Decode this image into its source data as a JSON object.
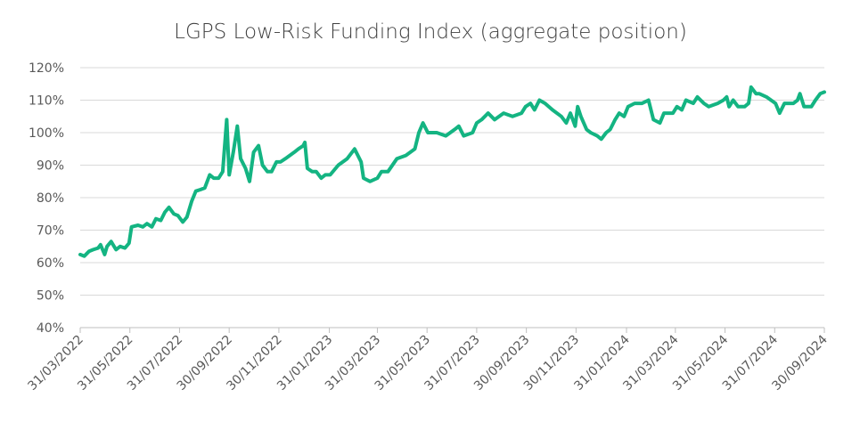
{
  "chart_data": {
    "type": "line",
    "title": "LGPS Low-Risk Funding Index (aggregate position)",
    "color": "#14b482",
    "grid": true,
    "x": [
      "2022-03-31",
      "2022-04-05",
      "2022-04-11",
      "2022-04-16",
      "2022-04-22",
      "2022-04-25",
      "2022-04-30",
      "2022-05-03",
      "2022-05-08",
      "2022-05-14",
      "2022-05-19",
      "2022-05-25",
      "2022-05-30",
      "2022-06-02",
      "2022-06-10",
      "2022-06-16",
      "2022-06-21",
      "2022-06-27",
      "2022-07-02",
      "2022-07-08",
      "2022-07-13",
      "2022-07-18",
      "2022-07-24",
      "2022-07-29",
      "2022-08-04",
      "2022-08-09",
      "2022-08-15",
      "2022-08-20",
      "2022-08-26",
      "2022-08-31",
      "2022-09-06",
      "2022-09-11",
      "2022-09-17",
      "2022-09-22",
      "2022-09-27",
      "2022-09-30",
      "2022-10-05",
      "2022-10-10",
      "2022-10-14",
      "2022-10-20",
      "2022-10-25",
      "2022-10-30",
      "2022-11-05",
      "2022-11-10",
      "2022-11-16",
      "2022-11-21",
      "2022-11-27",
      "2022-12-02",
      "2022-12-08",
      "2022-12-19",
      "2022-12-24",
      "2022-12-30",
      "2023-01-01",
      "2023-01-04",
      "2023-01-10",
      "2023-01-15",
      "2023-01-21",
      "2023-01-26",
      "2023-02-01",
      "2023-02-11",
      "2023-02-22",
      "2023-03-03",
      "2023-03-11",
      "2023-03-14",
      "2023-03-22",
      "2023-03-31",
      "2023-04-05",
      "2023-04-13",
      "2023-04-24",
      "2023-05-05",
      "2023-05-16",
      "2023-05-21",
      "2023-05-26",
      "2023-06-01",
      "2023-06-12",
      "2023-06-23",
      "2023-07-04",
      "2023-07-09",
      "2023-07-15",
      "2023-07-26",
      "2023-07-31",
      "2023-08-06",
      "2023-08-14",
      "2023-08-22",
      "2023-09-02",
      "2023-09-13",
      "2023-09-24",
      "2023-09-29",
      "2023-10-05",
      "2023-10-10",
      "2023-10-16",
      "2023-10-23",
      "2023-11-01",
      "2023-11-12",
      "2023-11-18",
      "2023-11-23",
      "2023-11-29",
      "2023-12-02",
      "2023-12-06",
      "2023-12-13",
      "2023-12-18",
      "2023-12-26",
      "2023-12-31",
      "2024-01-06",
      "2024-01-11",
      "2024-01-17",
      "2024-01-22",
      "2024-01-28",
      "2024-02-02",
      "2024-02-10",
      "2024-02-19",
      "2024-02-27",
      "2024-03-04",
      "2024-03-12",
      "2024-03-17",
      "2024-03-28",
      "2024-04-02",
      "2024-04-08",
      "2024-04-13",
      "2024-04-22",
      "2024-04-27",
      "2024-05-05",
      "2024-05-11",
      "2024-05-22",
      "2024-05-29",
      "2024-06-02",
      "2024-06-05",
      "2024-06-10",
      "2024-06-16",
      "2024-06-24",
      "2024-06-29",
      "2024-07-02",
      "2024-07-08",
      "2024-07-12",
      "2024-07-21",
      "2024-08-01",
      "2024-08-06",
      "2024-08-12",
      "2024-08-23",
      "2024-08-28",
      "2024-08-31",
      "2024-09-05",
      "2024-09-14",
      "2024-09-19",
      "2024-09-25",
      "2024-09-30"
    ],
    "values": [
      62.5,
      62,
      63.5,
      64,
      64.5,
      65.5,
      62.5,
      65,
      66.5,
      64,
      65,
      64.5,
      66,
      71,
      71.5,
      71,
      72,
      71,
      73.5,
      73,
      75.5,
      77,
      75,
      74.5,
      72.5,
      74,
      79,
      82,
      82.5,
      83,
      87,
      86,
      86,
      88,
      104,
      87,
      94,
      102,
      92,
      89,
      85,
      94,
      96,
      90,
      88,
      88,
      91,
      91,
      92,
      94,
      95,
      96,
      97,
      89,
      88,
      88,
      86,
      87,
      87,
      90,
      92,
      95,
      91,
      86,
      85,
      86,
      88,
      88,
      92,
      93,
      95,
      100,
      103,
      100,
      100,
      99,
      101,
      102,
      99,
      100,
      103,
      104,
      106,
      104,
      106,
      105,
      106,
      108,
      109,
      107,
      110,
      109,
      107,
      105,
      103,
      106,
      102,
      108,
      105,
      101,
      100,
      99,
      98,
      100,
      101,
      104,
      106,
      105,
      108,
      109,
      109,
      110,
      104,
      103,
      106,
      106,
      108,
      107,
      110,
      109,
      111,
      109,
      108,
      109,
      110,
      111,
      108,
      110,
      108,
      108,
      109,
      114,
      112,
      112,
      111,
      109,
      106,
      109,
      109,
      110,
      112,
      108,
      108,
      110,
      112,
      112.5
    ],
    "xlim": [
      "2022-03-31",
      "2024-09-30"
    ],
    "xticks": [
      {
        "value": "2022-03-31",
        "label": "31/03/2022"
      },
      {
        "value": "2022-05-31",
        "label": "31/05/2022"
      },
      {
        "value": "2022-07-31",
        "label": "31/07/2022"
      },
      {
        "value": "2022-09-30",
        "label": "30/09/2022"
      },
      {
        "value": "2022-11-30",
        "label": "30/11/2022"
      },
      {
        "value": "2023-01-31",
        "label": "31/01/2023"
      },
      {
        "value": "2023-03-31",
        "label": "31/03/2023"
      },
      {
        "value": "2023-05-31",
        "label": "31/05/2023"
      },
      {
        "value": "2023-07-31",
        "label": "31/07/2023"
      },
      {
        "value": "2023-09-30",
        "label": "30/09/2023"
      },
      {
        "value": "2023-11-30",
        "label": "30/11/2023"
      },
      {
        "value": "2024-01-31",
        "label": "31/01/2024"
      },
      {
        "value": "2024-03-31",
        "label": "31/03/2024"
      },
      {
        "value": "2024-05-31",
        "label": "31/05/2024"
      },
      {
        "value": "2024-07-31",
        "label": "31/07/2024"
      },
      {
        "value": "2024-09-30",
        "label": "30/09/2024"
      }
    ],
    "ylim": [
      40,
      120
    ],
    "yticks": [
      {
        "value": 40,
        "label": "40%"
      },
      {
        "value": 50,
        "label": "50%"
      },
      {
        "value": 60,
        "label": "60%"
      },
      {
        "value": 70,
        "label": "70%"
      },
      {
        "value": 80,
        "label": "80%"
      },
      {
        "value": 90,
        "label": "90%"
      },
      {
        "value": 100,
        "label": "100%"
      },
      {
        "value": 110,
        "label": "110%"
      },
      {
        "value": 120,
        "label": "120%"
      }
    ]
  }
}
